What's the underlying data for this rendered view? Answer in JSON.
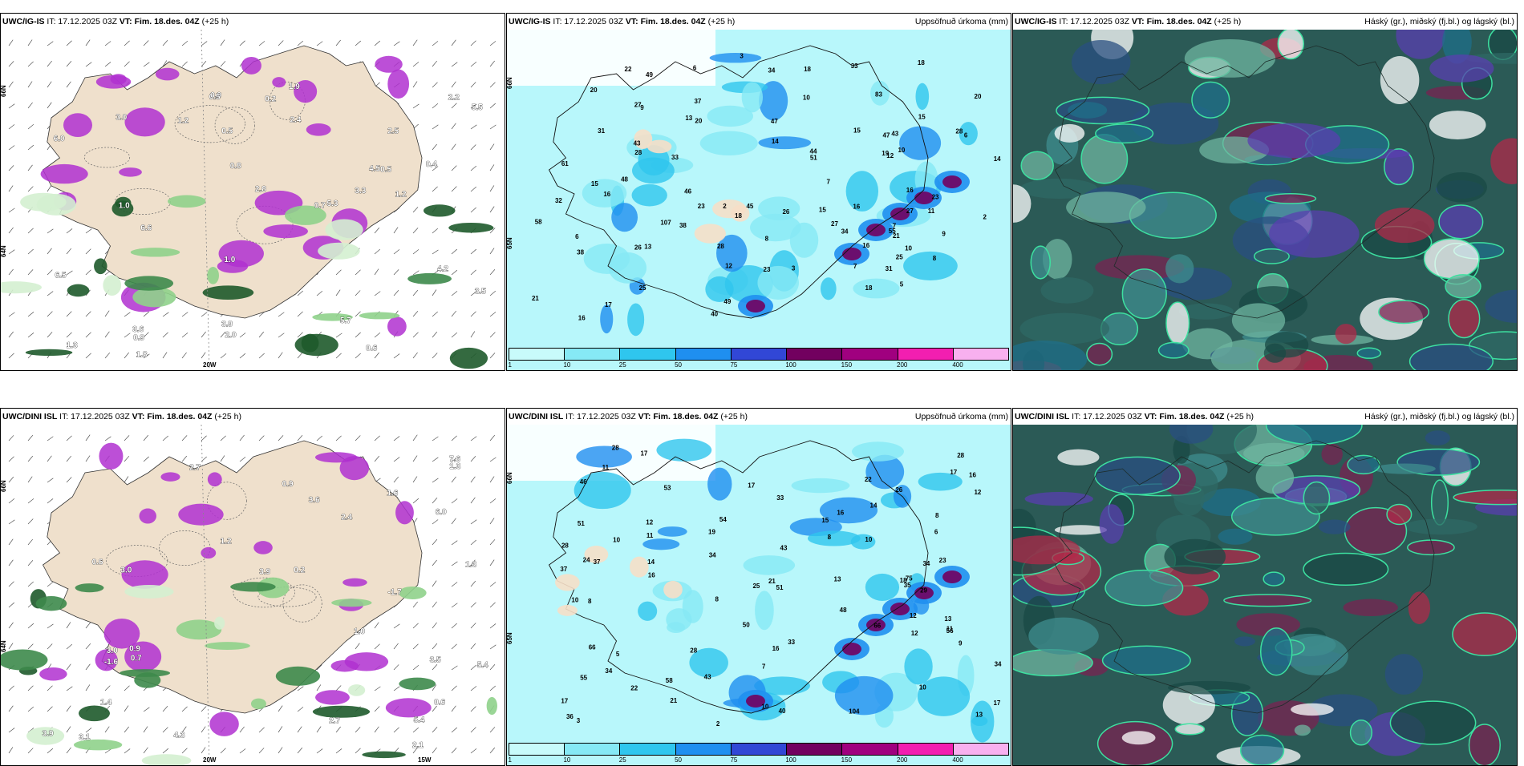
{
  "panels": [
    {
      "id": "p1",
      "type": "ptype",
      "row": 0,
      "col": 0,
      "model": "UWC/IG-IS",
      "init": "IT: 17.12.2025 03Z",
      "valid": "VT: Fim. 18.des. 04Z",
      "lead": "(+25 h)",
      "right": "",
      "values": [
        "1.2",
        "4.5",
        "0.2",
        "2.5",
        "5.3",
        "6.5",
        "0.4",
        "0.5",
        "2.4",
        "0.9",
        "0.8",
        "3.9",
        "5.7",
        "3.5",
        "2.2",
        "1.3",
        "0.6",
        "0.5",
        "4.2",
        "6.0",
        "6.6",
        "2.8",
        "1.8",
        "3.3",
        "1.0",
        "0.7",
        "3.0",
        "1.2",
        "1.9",
        "5.5",
        "3.6",
        "0.5",
        "1.0",
        "0.9",
        "2.0"
      ]
    },
    {
      "id": "p2",
      "type": "precip",
      "row": 0,
      "col": 1,
      "model": "UWC/IG-IS",
      "init": "IT: 17.12.2025 03Z",
      "valid": "VT: Fim. 18.des. 04Z",
      "lead": "(+25 h)",
      "right": "Uppsöfnuð úrkoma (mm)",
      "values": [
        "2",
        "15",
        "27",
        "32",
        "28",
        "31",
        "6",
        "6",
        "7",
        "7",
        "16",
        "10",
        "49",
        "38",
        "12",
        "47",
        "18",
        "20",
        "43",
        "34",
        "33",
        "23",
        "22",
        "33",
        "44",
        "14",
        "15",
        "18",
        "28",
        "8",
        "40",
        "43",
        "47",
        "51",
        "38",
        "26",
        "10",
        "11",
        "9",
        "13",
        "16",
        "20",
        "14",
        "3",
        "25",
        "15",
        "28",
        "9",
        "48",
        "58",
        "49",
        "37",
        "18",
        "17",
        "23",
        "8",
        "3",
        "2",
        "7",
        "15",
        "16",
        "5",
        "21",
        "27",
        "13",
        "6",
        "34",
        "45",
        "83",
        "55",
        "25",
        "31",
        "23",
        "26",
        "46",
        "107",
        "61",
        "21",
        "20",
        "16",
        "18",
        "12",
        "19",
        "27",
        "16",
        "10"
      ]
    },
    {
      "id": "p3",
      "type": "cloud",
      "row": 0,
      "col": 2,
      "model": "UWC/IG-IS",
      "init": "IT: 17.12.2025 03Z",
      "valid": "VT: Fim. 18.des. 04Z",
      "lead": "(+25 h)",
      "right": "Háský (gr.), miðský (fj.bl.) og lágský (bl.)",
      "values": []
    },
    {
      "id": "p4",
      "type": "ptype",
      "row": 1,
      "col": 0,
      "model": "UWC/DINI ISL",
      "init": "IT: 17.12.2025 03Z",
      "valid": "VT: Fim. 18.des. 04Z",
      "lead": "(+25 h)",
      "right": "",
      "values": [
        "0.2",
        "3.6",
        "3.1",
        "3.9",
        "2.7",
        "2.4",
        "3.0",
        "1.3",
        "7.6",
        "5.4",
        "-1.7",
        "-1.6",
        "0.7",
        "3.0",
        "1.0",
        "0.9",
        "1.2",
        "1.3",
        "4.3",
        "3.5",
        "0.6",
        "5.4",
        "6.0",
        "2.7",
        "1.4",
        "1.6",
        "2.1",
        "0.9",
        "0.6",
        "3.9"
      ]
    },
    {
      "id": "p5",
      "type": "precip",
      "row": 1,
      "col": 1,
      "model": "UWC/DINI ISL",
      "init": "IT: 17.12.2025 03Z",
      "valid": "VT: Fim. 18.des. 04Z",
      "lead": "(+25 h)",
      "right": "Uppsöfnuð úrkoma (mm)",
      "values": [
        "12",
        "8",
        "28",
        "34",
        "24",
        "37",
        "8",
        "8",
        "48",
        "58",
        "17",
        "25",
        "28",
        "26",
        "29",
        "34",
        "51",
        "36",
        "11",
        "16",
        "33",
        "46",
        "43",
        "51",
        "53",
        "17",
        "54",
        "66",
        "10",
        "7",
        "12",
        "23",
        "37",
        "55",
        "75",
        "13",
        "28",
        "10",
        "19",
        "22",
        "21",
        "16",
        "34",
        "40",
        "12",
        "15",
        "6",
        "5",
        "2",
        "8",
        "3",
        "10",
        "10",
        "11",
        "14",
        "12",
        "17",
        "34",
        "56",
        "50",
        "28",
        "66",
        "13",
        "18",
        "104",
        "43",
        "21",
        "17",
        "14",
        "33",
        "22",
        "35",
        "16",
        "17",
        "10",
        "16",
        "11",
        "9",
        "13"
      ]
    },
    {
      "id": "p6",
      "type": "cloud",
      "row": 1,
      "col": 2,
      "model": "UWC/DINI ISL",
      "init": "IT: 17.12.2025 03Z",
      "valid": "VT: Fim. 18.des. 04Z",
      "lead": "(+25 h)",
      "right": "Háský (gr.), miðský (fj.bl.) og lágský (bl.)",
      "values": []
    }
  ],
  "legend": {
    "ticks": [
      "1",
      "10",
      "25",
      "50",
      "75",
      "100",
      "150",
      "200",
      "400"
    ],
    "colors": [
      "#c8fbfb",
      "#86e9f5",
      "#2fc6ee",
      "#1f8ff0",
      "#3147d6",
      "#72005f",
      "#a0007f",
      "#f21fb0",
      "#f8b0ef"
    ]
  },
  "axis_labels": {
    "lon_left": "20W",
    "lon_right": "15W",
    "lat_top": "66N",
    "lat_mid": "65N",
    "lat_low": "64N"
  },
  "colors": {
    "land": "#efe0cc",
    "sea_precip": "#b8f7fb",
    "cloud_bg": "#2b5a56",
    "snow": "#b030d0",
    "rain": "#1e5a2b"
  }
}
